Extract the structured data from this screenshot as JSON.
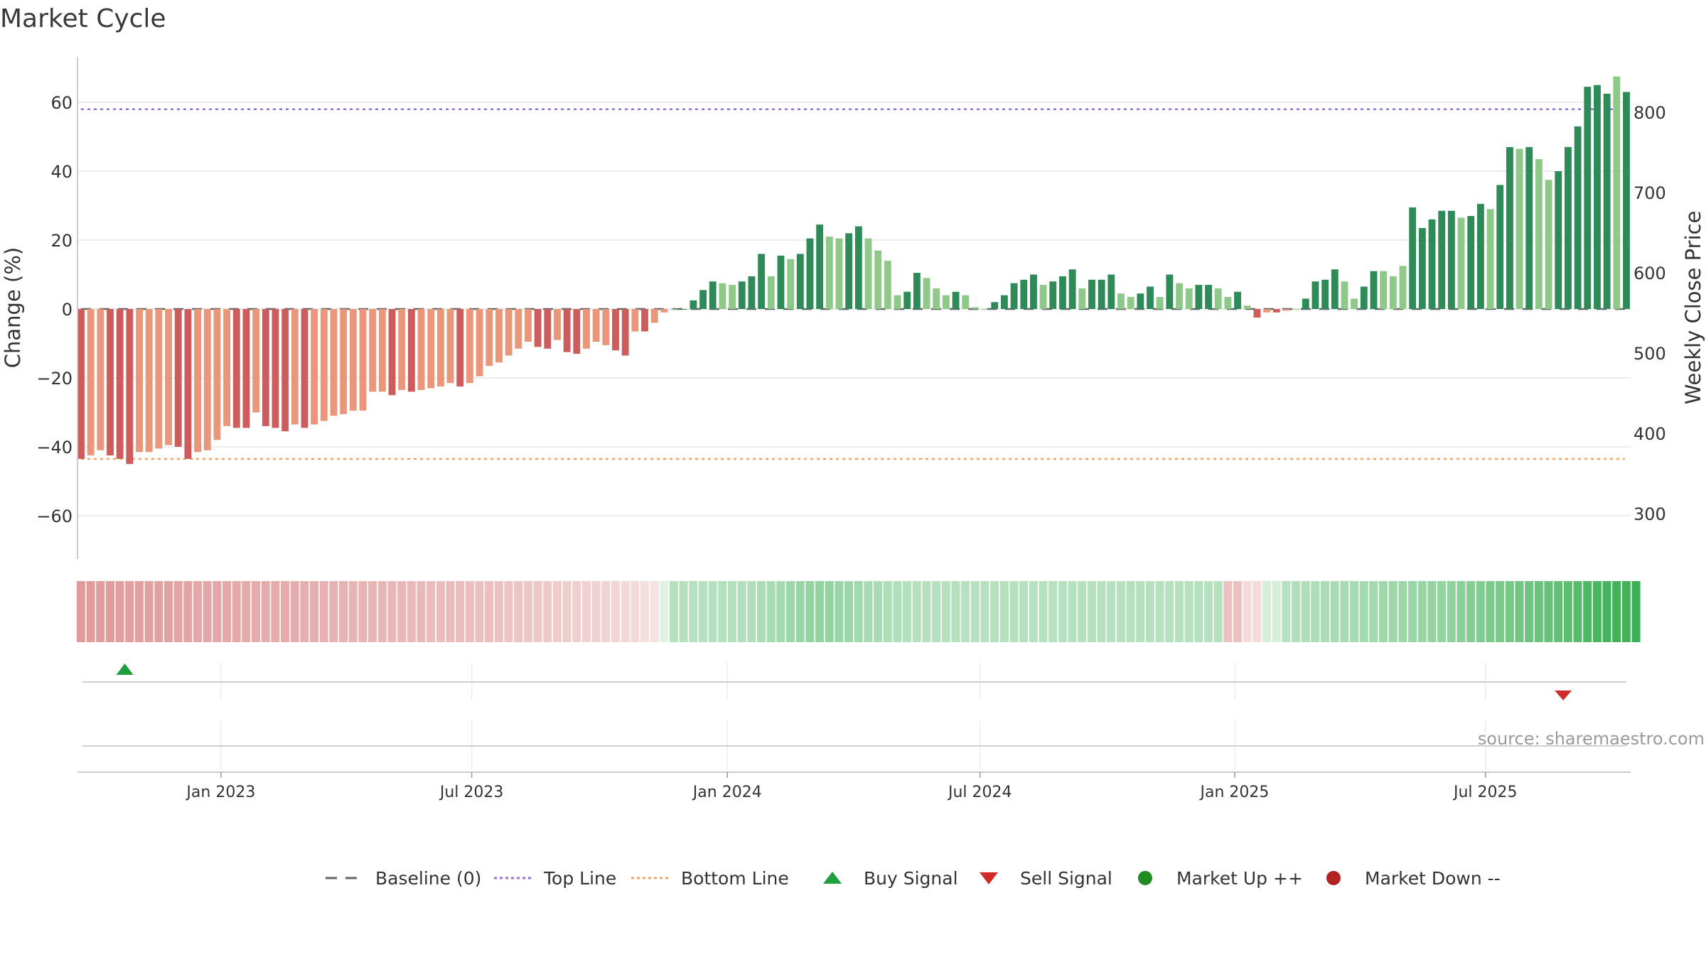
{
  "chart_data": {
    "type": "bar",
    "title": "Market Cycle",
    "ylabel": "Change (%)",
    "y2label": "Weekly Close Price",
    "ylim": [
      -72,
      73
    ],
    "yticks": [
      -60,
      -40,
      -20,
      0,
      20,
      40,
      60
    ],
    "y2ticks": [
      300,
      400,
      500,
      600,
      700,
      800
    ],
    "top_line": 58,
    "bottom_line": -43.5,
    "baseline": 0,
    "grid": true,
    "legend_position": "bottom-center",
    "x_labels": [
      "Jan 2023",
      "Jul 2023",
      "Jan 2024",
      "Jul 2024",
      "Jan 2025",
      "Jul 2025"
    ],
    "x_label_weeks": [
      14.4,
      40.2,
      66.5,
      92.5,
      118.7,
      144.5
    ],
    "values": [
      -43.5,
      -42.5,
      -41,
      -42.5,
      -43.5,
      -45,
      -41.5,
      -41.5,
      -40.5,
      -39.5,
      -40,
      -43.5,
      -41.5,
      -41,
      -38,
      -34,
      -34.5,
      -34.5,
      -30,
      -34,
      -34.5,
      -35.5,
      -33.5,
      -34.5,
      -33.5,
      -32.5,
      -31,
      -30.5,
      -29.5,
      -29.5,
      -24,
      -24,
      -25,
      -23.5,
      -24,
      -23.5,
      -23,
      -22.5,
      -21.5,
      -22.5,
      -21.5,
      -19.5,
      -16.5,
      -15.5,
      -13.5,
      -11.5,
      -9.5,
      -11,
      -11.5,
      -9,
      -12.5,
      -13,
      -11.5,
      -9.5,
      -10.5,
      -12,
      -13.5,
      -6.5,
      -6.5,
      -4,
      -1,
      0,
      0,
      2.5,
      5.5,
      8,
      7.5,
      7,
      8,
      9.5,
      16,
      9.5,
      15.5,
      14.5,
      16,
      20.5,
      24.5,
      21,
      20.5,
      22,
      24,
      20.5,
      17,
      14,
      4,
      5,
      10.5,
      9,
      6,
      4,
      5,
      4,
      0.5,
      0,
      2,
      4,
      7.5,
      8.5,
      10,
      7,
      8,
      9.5,
      11.5,
      6,
      8.5,
      8.5,
      10,
      4.5,
      3.5,
      4.5,
      6.5,
      3.5,
      10,
      7.5,
      6,
      7,
      7,
      6,
      3.5,
      5,
      1,
      -2.5,
      -1,
      -1,
      -0.5,
      0,
      3,
      8,
      8.5,
      11.5,
      8,
      3,
      6.5,
      11,
      11,
      9.5,
      12.5,
      29.5,
      23.5,
      26,
      28.5,
      28.5,
      26.5,
      27,
      30.5,
      29,
      36,
      47,
      46.5,
      47,
      43.5,
      37.5,
      40,
      47,
      53,
      64.5,
      65,
      62.5,
      67.5,
      63
    ],
    "color_intensity": [
      "dark",
      "light",
      "light",
      "dark",
      "dark",
      "dark",
      "light",
      "light",
      "light",
      "light",
      "dark",
      "dark",
      "light",
      "light",
      "light",
      "light",
      "dark",
      "dark",
      "light",
      "dark",
      "dark",
      "dark",
      "light",
      "dark",
      "light",
      "light",
      "light",
      "light",
      "light",
      "light",
      "light",
      "light",
      "dark",
      "light",
      "dark",
      "light",
      "light",
      "light",
      "light",
      "dark",
      "light",
      "light",
      "light",
      "light",
      "light",
      "light",
      "light",
      "dark",
      "dark",
      "light",
      "dark",
      "dark",
      "light",
      "light",
      "light",
      "dark",
      "dark",
      "light",
      "dark",
      "light",
      "light",
      "light",
      "dark",
      "dark",
      "dark",
      "dark",
      "light",
      "light",
      "dark",
      "dark",
      "dark",
      "light",
      "dark",
      "light",
      "dark",
      "dark",
      "dark",
      "light",
      "light",
      "dark",
      "dark",
      "light",
      "light",
      "light",
      "light",
      "dark",
      "dark",
      "light",
      "light",
      "light",
      "dark",
      "light",
      "light",
      "light",
      "dark",
      "dark",
      "dark",
      "dark",
      "dark",
      "light",
      "dark",
      "dark",
      "dark",
      "light",
      "dark",
      "dark",
      "dark",
      "light",
      "light",
      "dark",
      "dark",
      "light",
      "dark",
      "light",
      "light",
      "dark",
      "dark",
      "light",
      "light",
      "dark",
      "light",
      "dark",
      "light",
      "dark",
      "light",
      "light",
      "dark",
      "dark",
      "dark",
      "dark",
      "light",
      "light",
      "dark",
      "dark",
      "light",
      "light",
      "light",
      "dark",
      "dark",
      "dark",
      "dark",
      "dark",
      "light",
      "dark",
      "dark",
      "light",
      "dark",
      "dark",
      "light",
      "dark",
      "light",
      "light",
      "dark",
      "dark",
      "dark",
      "dark",
      "dark",
      "dark",
      "light",
      "dark",
      "light"
    ],
    "strip_strength": [
      0.62,
      0.61,
      0.6,
      0.6,
      0.59,
      0.59,
      0.58,
      0.58,
      0.57,
      0.57,
      0.56,
      0.56,
      0.55,
      0.54,
      0.54,
      0.53,
      0.53,
      0.52,
      0.52,
      0.51,
      0.51,
      0.5,
      0.5,
      0.49,
      0.49,
      0.48,
      0.47,
      0.47,
      0.46,
      0.46,
      0.45,
      0.45,
      0.44,
      0.44,
      0.43,
      0.43,
      0.42,
      0.41,
      0.41,
      0.4,
      0.4,
      0.39,
      0.39,
      0.38,
      0.37,
      0.36,
      0.35,
      0.34,
      0.33,
      0.32,
      0.31,
      0.3,
      0.29,
      0.28,
      0.27,
      0.26,
      0.24,
      0.22,
      0.2,
      0.18,
      0.16,
      0.38,
      0.38,
      0.38,
      0.38,
      0.39,
      0.39,
      0.39,
      0.4,
      0.41,
      0.43,
      0.45,
      0.47,
      0.5,
      0.53,
      0.55,
      0.55,
      0.54,
      0.52,
      0.5,
      0.48,
      0.46,
      0.44,
      0.42,
      0.4,
      0.39,
      0.38,
      0.38,
      0.38,
      0.38,
      0.38,
      0.38,
      0.38,
      0.38,
      0.38,
      0.38,
      0.38,
      0.38,
      0.38,
      0.38,
      0.38,
      0.38,
      0.38,
      0.38,
      0.38,
      0.38,
      0.38,
      0.38,
      0.38,
      0.38,
      0.38,
      0.38,
      0.38,
      0.38,
      0.38,
      0.38,
      0.38,
      0.38,
      0.38,
      0.38,
      0.22,
      0.22,
      0.22,
      0.22,
      0.38,
      0.4,
      0.41,
      0.42,
      0.43,
      0.44,
      0.45,
      0.46,
      0.47,
      0.48,
      0.49,
      0.5,
      0.51,
      0.52,
      0.53,
      0.54,
      0.55,
      0.57,
      0.6,
      0.63,
      0.65,
      0.67,
      0.68,
      0.7,
      0.72,
      0.74,
      0.76,
      0.78,
      0.8,
      0.83,
      0.86,
      0.9,
      0.93,
      0.95,
      0.97,
      0.98,
      1.0
    ],
    "buy_signal_week": 4.5,
    "sell_signal_week": 152.5,
    "source": "source: sharemaestro.com",
    "colors": {
      "neg_dark": "#cd5c5c",
      "neg_light": "#e9967a",
      "pos_dark": "#2e8b57",
      "pos_light": "#8fc98a",
      "strip_neg": "#cd5c5c",
      "strip_pos": "#3cb054",
      "top_line": "#9370db",
      "bottom_line": "#f4a460",
      "baseline": "#666666",
      "buy": "#1e9e3e",
      "sell": "#d12a2a",
      "market_up": "#228b22",
      "market_down": "#b22222"
    },
    "legend": [
      {
        "label": "Baseline (0)",
        "kind": "dash",
        "color": "#666666"
      },
      {
        "label": "Top Line",
        "kind": "dot",
        "color": "#9370db"
      },
      {
        "label": "Bottom Line",
        "kind": "dot",
        "color": "#f4a460"
      },
      {
        "label": "Buy Signal",
        "kind": "tri-up",
        "color": "#1e9e3e"
      },
      {
        "label": "Sell Signal",
        "kind": "tri-down",
        "color": "#d12a2a"
      },
      {
        "label": "Market Up ++",
        "kind": "circle",
        "color": "#228b22"
      },
      {
        "label": "Market Down --",
        "kind": "circle",
        "color": "#b22222"
      }
    ]
  }
}
